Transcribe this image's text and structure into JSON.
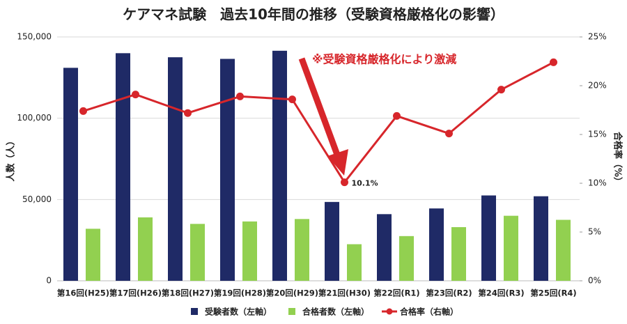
{
  "chart_data": {
    "type": "bar-line",
    "title": "ケアマネ試験　過去10年間の推移（受験資格厳格化の影響）",
    "categories": [
      "第16回(H25)",
      "第17回(H26)",
      "第18回(H27)",
      "第19回(H28)",
      "第20回(H29)",
      "第21回(H30)",
      "第22回(R1)",
      "第23回(R2)",
      "第24回(R3)",
      "第25回(R4)"
    ],
    "series": [
      {
        "name": "受験者数（左軸）",
        "color": "#1f2a66",
        "type": "bar",
        "values": [
          131000,
          140000,
          137500,
          136500,
          141500,
          48500,
          41000,
          44500,
          52500,
          52000
        ]
      },
      {
        "name": "合格者数（左軸）",
        "color": "#92d050",
        "type": "bar",
        "values": [
          32000,
          39000,
          35000,
          36500,
          38000,
          22500,
          27500,
          33000,
          40000,
          37500
        ]
      },
      {
        "name": "合格率（右軸）",
        "color": "#d7262b",
        "type": "line",
        "axis": "y2",
        "values": [
          17.4,
          19.1,
          17.2,
          18.9,
          18.6,
          10.1,
          16.9,
          15.1,
          19.6,
          22.4
        ],
        "value_labels": [
          null,
          null,
          null,
          null,
          null,
          "10.1%",
          null,
          null,
          null,
          null
        ]
      }
    ],
    "ylabel": "人数（人）",
    "y2label": "合格率（%）",
    "ylim": [
      0,
      150000
    ],
    "yticks": [
      0,
      {
        "value": 50000,
        "label": "50,000"
      },
      {
        "value": 100000,
        "label": "100,000"
      },
      {
        "value": 150000,
        "label": "150,000"
      }
    ],
    "y2lim": [
      0,
      25
    ],
    "y2ticks": [
      {
        "value": 0,
        "label": "0%"
      },
      {
        "value": 5,
        "label": "5%"
      },
      {
        "value": 10,
        "label": "10%"
      },
      {
        "value": 15,
        "label": "15%"
      },
      {
        "value": 20,
        "label": "20%"
      },
      {
        "value": 25,
        "label": "25%"
      }
    ],
    "grid": true,
    "legend": "bottom",
    "annotation": "※受験資格厳格化により激減"
  }
}
